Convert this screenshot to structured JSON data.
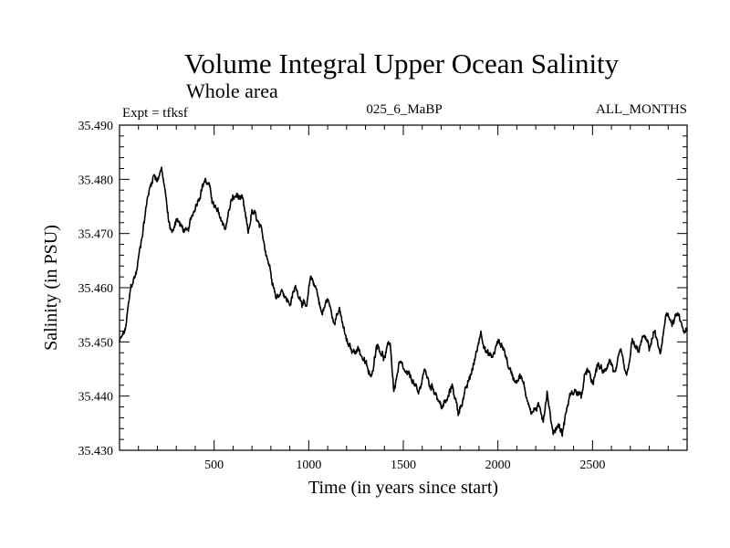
{
  "chart_data": {
    "type": "line",
    "title": "Volume Integral Upper Ocean Salinity",
    "subtitle": "Whole area",
    "expt_label": "Expt = tfksf",
    "run_label": "025_6_MaBP",
    "months_label": "ALL_MONTHS",
    "xlabel": "Time (in years since start)",
    "ylabel": "Salinity (in PSU)",
    "xlim": [
      0,
      3000
    ],
    "ylim": [
      35.43,
      35.49
    ],
    "x_ticks": [
      500,
      1000,
      1500,
      2000,
      2500
    ],
    "x_tick_labels": [
      "500",
      "1000",
      "1500",
      "2000",
      "2500"
    ],
    "y_ticks": [
      35.43,
      35.44,
      35.45,
      35.46,
      35.47,
      35.48,
      35.49
    ],
    "y_tick_labels": [
      "35.430",
      "35.440",
      "35.450",
      "35.460",
      "35.470",
      "35.480",
      "35.490"
    ],
    "series": [
      {
        "name": "Salinity",
        "x": [
          0,
          30,
          60,
          90,
          120,
          150,
          180,
          200,
          220,
          240,
          260,
          280,
          300,
          330,
          360,
          390,
          420,
          450,
          470,
          500,
          530,
          560,
          590,
          620,
          650,
          680,
          700,
          720,
          750,
          780,
          800,
          830,
          860,
          880,
          900,
          930,
          960,
          990,
          1010,
          1040,
          1070,
          1100,
          1130,
          1160,
          1200,
          1230,
          1260,
          1300,
          1330,
          1360,
          1400,
          1430,
          1450,
          1480,
          1510,
          1550,
          1580,
          1610,
          1640,
          1670,
          1700,
          1730,
          1760,
          1790,
          1820,
          1850,
          1880,
          1910,
          1940,
          1970,
          2000,
          2030,
          2060,
          2090,
          2120,
          2150,
          2180,
          2210,
          2240,
          2260,
          2290,
          2320,
          2340,
          2360,
          2380,
          2410,
          2440,
          2470,
          2500,
          2530,
          2560,
          2590,
          2620,
          2650,
          2680,
          2710,
          2740,
          2770,
          2800,
          2830,
          2860,
          2890,
          2920,
          2950,
          2980,
          3000
        ],
        "y": [
          35.45,
          35.452,
          35.46,
          35.463,
          35.47,
          35.477,
          35.481,
          35.48,
          35.482,
          35.478,
          35.472,
          35.47,
          35.473,
          35.471,
          35.47,
          35.474,
          35.477,
          35.48,
          35.479,
          35.475,
          35.473,
          35.471,
          35.476,
          35.477,
          35.476,
          35.47,
          35.474,
          35.473,
          35.47,
          35.466,
          35.463,
          35.458,
          35.46,
          35.458,
          35.457,
          35.46,
          35.458,
          35.456,
          35.462,
          35.46,
          35.455,
          35.458,
          35.454,
          35.456,
          35.45,
          35.448,
          35.449,
          35.446,
          35.443,
          35.45,
          35.447,
          35.45,
          35.441,
          35.446,
          35.444,
          35.443,
          35.44,
          35.445,
          35.442,
          35.441,
          35.438,
          35.439,
          35.442,
          35.437,
          35.44,
          35.443,
          35.447,
          35.452,
          35.448,
          35.447,
          35.45,
          35.449,
          35.445,
          35.443,
          35.444,
          35.44,
          35.437,
          35.438,
          35.436,
          35.441,
          35.433,
          35.435,
          35.433,
          35.437,
          35.44,
          35.441,
          35.44,
          35.445,
          35.442,
          35.446,
          35.444,
          35.447,
          35.444,
          35.448,
          35.443,
          35.45,
          35.448,
          35.451,
          35.449,
          35.452,
          35.447,
          35.456,
          35.453,
          35.455,
          35.452,
          35.452
        ]
      }
    ]
  }
}
